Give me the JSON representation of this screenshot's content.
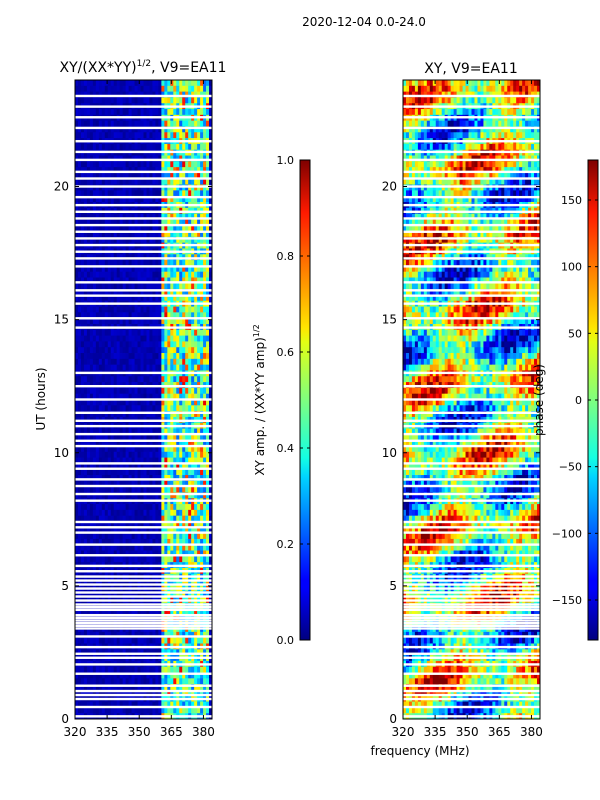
{
  "suptitle": "2020-12-04 0.0-24.0",
  "chart_data": [
    {
      "type": "heatmap",
      "title_main": "XY/(XX*YY)",
      "title_sup": "1/2",
      "title_rest": ", V9=EA11",
      "xlabel": "",
      "ylabel": "UT (hours)",
      "xlim": [
        320,
        384
      ],
      "ylim": [
        0,
        24
      ],
      "xticks": [
        "320",
        "335",
        "350",
        "365",
        "380"
      ],
      "xtick_values": [
        320,
        335,
        350,
        365,
        380
      ],
      "yticks": [
        "0",
        "5",
        "10",
        "15",
        "20"
      ],
      "ytick_values": [
        0,
        5,
        10,
        15,
        20
      ],
      "signal_band_mhz": [
        361,
        383
      ],
      "colorbar": {
        "label_main": "XY amp. / (XX*YY amp)",
        "label_sup": "1/2",
        "range": [
          0.0,
          1.0
        ],
        "ticks": [
          "0.0",
          "0.2",
          "0.4",
          "0.6",
          "0.8",
          "1.0"
        ],
        "tick_values": [
          0.0,
          0.2,
          0.4,
          0.6,
          0.8,
          1.0
        ]
      }
    },
    {
      "type": "heatmap",
      "title": "XY, V9=EA11",
      "xlabel": "frequency (MHz)",
      "ylabel": "",
      "xlim": [
        320,
        384
      ],
      "ylim": [
        0,
        24
      ],
      "xticks": [
        "320",
        "335",
        "350",
        "365",
        "380"
      ],
      "xtick_values": [
        320,
        335,
        350,
        365,
        380
      ],
      "yticks": [
        "0",
        "5",
        "10",
        "15",
        "20"
      ],
      "ytick_values": [
        0,
        5,
        10,
        15,
        20
      ],
      "colorbar": {
        "label": "phase (deg)",
        "range": [
          -180,
          180
        ],
        "ticks": [
          "−150",
          "−100",
          "−50",
          "0",
          "50",
          "100",
          "150"
        ],
        "tick_values": [
          -150,
          -100,
          -50,
          0,
          50,
          100,
          150
        ]
      }
    }
  ],
  "flagged_hours": [
    0.1,
    0.45,
    0.75,
    0.9,
    1.05,
    1.25,
    1.7,
    2.05,
    2.3,
    2.45,
    2.7,
    3.1,
    3.4,
    3.5,
    3.6,
    3.7,
    3.8,
    3.9,
    4.1,
    4.2,
    4.3,
    4.45,
    4.6,
    4.75,
    4.9,
    5.05,
    5.2,
    5.35,
    5.55,
    5.75,
    6.15,
    6.55,
    7.0,
    7.2,
    7.4,
    8.2,
    8.45,
    8.75,
    9.0,
    9.4,
    9.6,
    10.25,
    10.45,
    10.7,
    11.0,
    11.2,
    11.5,
    12.0,
    12.5,
    13.0,
    14.7,
    15.05,
    15.6,
    15.9,
    16.1,
    16.4,
    17.0,
    17.3,
    17.55,
    17.8,
    18.05,
    18.3,
    18.55,
    18.8,
    19.05,
    19.3,
    19.6,
    20.0,
    20.3,
    20.55,
    21.0,
    21.3,
    21.7,
    22.2,
    22.6,
    23.0,
    23.4
  ]
}
